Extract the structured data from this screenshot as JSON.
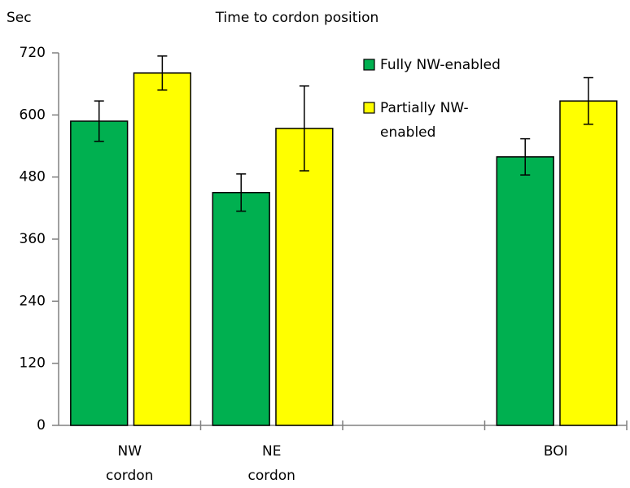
{
  "chart_data": {
    "type": "bar",
    "title": "Time to cordon position",
    "y_label": "Sec",
    "categories": [
      "NW cordon",
      "NE cordon",
      null,
      "BOI"
    ],
    "series": [
      {
        "name": "Fully NW-enabled",
        "color": "#00b050",
        "values": [
          588,
          450,
          null,
          519
        ],
        "errors": [
          39,
          36,
          null,
          35
        ]
      },
      {
        "name": "Partially NW-enabled",
        "color": "#ffff00",
        "values": [
          681,
          574,
          null,
          627
        ],
        "errors": [
          33,
          82,
          null,
          45
        ]
      }
    ],
    "ylim": [
      0,
      720
    ],
    "yticks": [
      0,
      120,
      240,
      360,
      480,
      600,
      720
    ]
  }
}
